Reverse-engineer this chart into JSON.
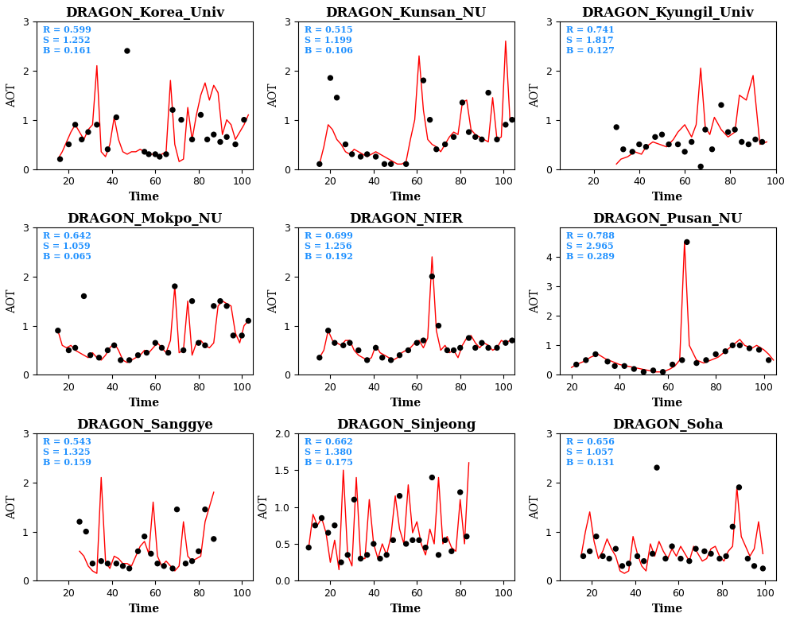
{
  "subplots": [
    {
      "title": "DRAGON_Korea_Univ",
      "R": 0.599,
      "S": 1.252,
      "B": 0.161,
      "ylim": [
        0,
        3
      ],
      "yticks": [
        0,
        1,
        2,
        3
      ],
      "xlim": [
        5,
        105
      ],
      "xticks": [
        20,
        40,
        60,
        80,
        100
      ]
    },
    {
      "title": "DRAGON_Kunsan_NU",
      "R": 0.515,
      "S": 1.199,
      "B": 0.106,
      "ylim": [
        0,
        3
      ],
      "yticks": [
        0,
        1,
        2,
        3
      ],
      "xlim": [
        5,
        105
      ],
      "xticks": [
        20,
        40,
        60,
        80,
        100
      ]
    },
    {
      "title": "DRAGON_Kyungil_Univ",
      "R": 0.741,
      "S": 1.817,
      "B": 0.127,
      "ylim": [
        0,
        3
      ],
      "yticks": [
        0,
        1,
        2,
        3
      ],
      "xlim": [
        5,
        100
      ],
      "xticks": [
        20,
        40,
        60,
        80,
        100
      ]
    },
    {
      "title": "DRAGON_Mokpo_NU",
      "R": 0.642,
      "S": 1.059,
      "B": 0.065,
      "ylim": [
        0,
        3
      ],
      "yticks": [
        0,
        1,
        2,
        3
      ],
      "xlim": [
        5,
        105
      ],
      "xticks": [
        20,
        40,
        60,
        80,
        100
      ]
    },
    {
      "title": "DRAGON_NIER",
      "R": 0.699,
      "S": 1.256,
      "B": 0.192,
      "ylim": [
        0,
        3
      ],
      "yticks": [
        0,
        1,
        2,
        3
      ],
      "xlim": [
        5,
        105
      ],
      "xticks": [
        20,
        40,
        60,
        80,
        100
      ]
    },
    {
      "title": "DRAGON_Pusan_NU",
      "R": 0.788,
      "S": 2.965,
      "B": 0.289,
      "ylim": [
        0,
        5
      ],
      "yticks": [
        0,
        1,
        2,
        3,
        4
      ],
      "xlim": [
        15,
        105
      ],
      "xticks": [
        20,
        40,
        60,
        80,
        100
      ]
    },
    {
      "title": "DRAGON_Sanggye",
      "R": 0.543,
      "S": 1.325,
      "B": 0.159,
      "ylim": [
        0,
        3
      ],
      "yticks": [
        0,
        1,
        2,
        3
      ],
      "xlim": [
        5,
        105
      ],
      "xticks": [
        20,
        40,
        60,
        80,
        100
      ]
    },
    {
      "title": "DRAGON_Sinjeong",
      "R": 0.662,
      "S": 1.38,
      "B": 0.175,
      "ylim": [
        0.0,
        2.0
      ],
      "yticks": [
        0.0,
        0.5,
        1.0,
        1.5,
        2.0
      ],
      "xlim": [
        5,
        105
      ],
      "xticks": [
        20,
        40,
        60,
        80,
        100
      ]
    },
    {
      "title": "DRAGON_Soha",
      "R": 0.656,
      "S": 1.057,
      "B": 0.131,
      "ylim": [
        0,
        3
      ],
      "yticks": [
        0,
        1,
        2,
        3
      ],
      "xlim": [
        5,
        105
      ],
      "xticks": [
        20,
        40,
        60,
        80,
        100
      ]
    }
  ],
  "line_color": "#FF0000",
  "dot_color": "#000000",
  "annotation_color": "#1E90FF",
  "xlabel": "Time",
  "ylabel": "AOT",
  "title_fontsize": 12,
  "label_fontsize": 10,
  "tick_fontsize": 9,
  "annotation_fontsize": 8
}
